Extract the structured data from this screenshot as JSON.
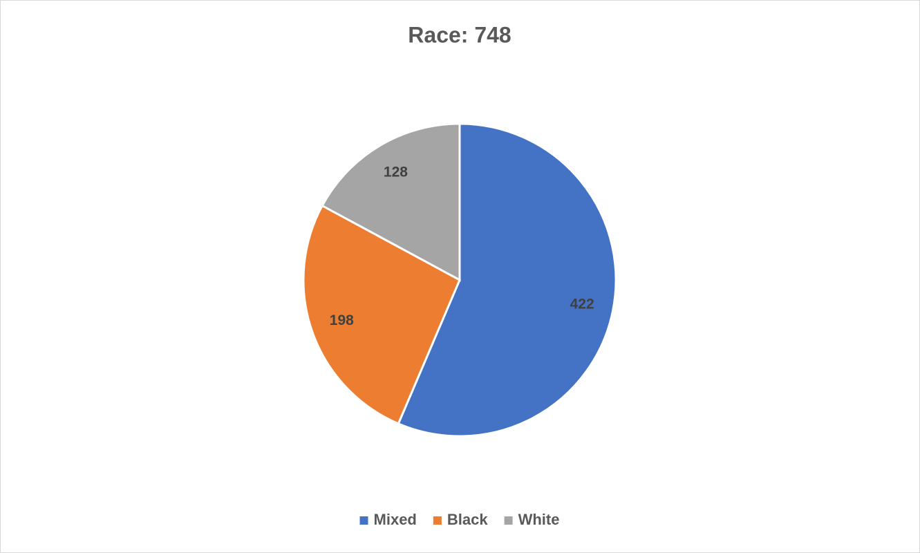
{
  "chart_data": {
    "type": "pie",
    "title": "Race: 748",
    "categories": [
      "Mixed",
      "Black",
      "White"
    ],
    "values": [
      422,
      198,
      128
    ],
    "colors": [
      "#4472c4",
      "#ed7d31",
      "#a5a5a5"
    ],
    "legend": "bottom"
  }
}
